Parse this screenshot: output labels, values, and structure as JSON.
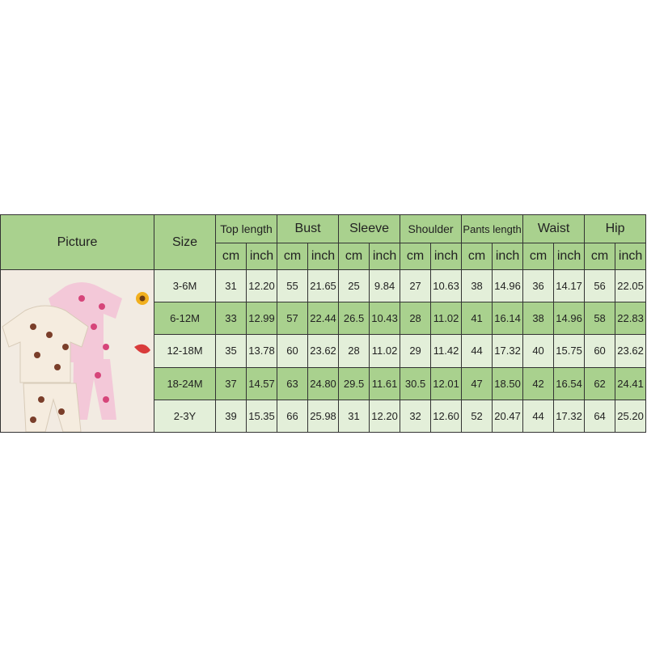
{
  "table": {
    "picture_label": "Picture",
    "size_label": "Size",
    "measurements": [
      "Top length",
      "Bust",
      "Sleeve",
      "Shoulder",
      "Pants length",
      "Waist",
      "Hip"
    ],
    "units": [
      "cm",
      "inch"
    ],
    "rows": [
      {
        "size": "3-6M",
        "values": [
          "31",
          "12.20",
          "55",
          "21.65",
          "25",
          "9.84",
          "27",
          "10.63",
          "38",
          "14.96",
          "36",
          "14.17",
          "56",
          "22.05"
        ]
      },
      {
        "size": "6-12M",
        "values": [
          "33",
          "12.99",
          "57",
          "22.44",
          "26.5",
          "10.43",
          "28",
          "11.02",
          "41",
          "16.14",
          "38",
          "14.96",
          "58",
          "22.83"
        ]
      },
      {
        "size": "12-18M",
        "values": [
          "35",
          "13.78",
          "60",
          "23.62",
          "28",
          "11.02",
          "29",
          "11.42",
          "44",
          "17.32",
          "40",
          "15.75",
          "60",
          "23.62"
        ]
      },
      {
        "size": "18-24M",
        "values": [
          "37",
          "14.57",
          "63",
          "24.80",
          "29.5",
          "11.61",
          "30.5",
          "12.01",
          "47",
          "18.50",
          "42",
          "16.54",
          "62",
          "24.41"
        ]
      },
      {
        "size": "2-3Y",
        "values": [
          "39",
          "15.35",
          "66",
          "25.98",
          "31",
          "12.20",
          "32",
          "12.60",
          "52",
          "20.47",
          "44",
          "17.32",
          "64",
          "25.20"
        ]
      }
    ]
  },
  "colors": {
    "header": "#a9d18e",
    "row_light": "#e3efd9",
    "row_dark": "#a9d18e",
    "border": "#333333"
  }
}
